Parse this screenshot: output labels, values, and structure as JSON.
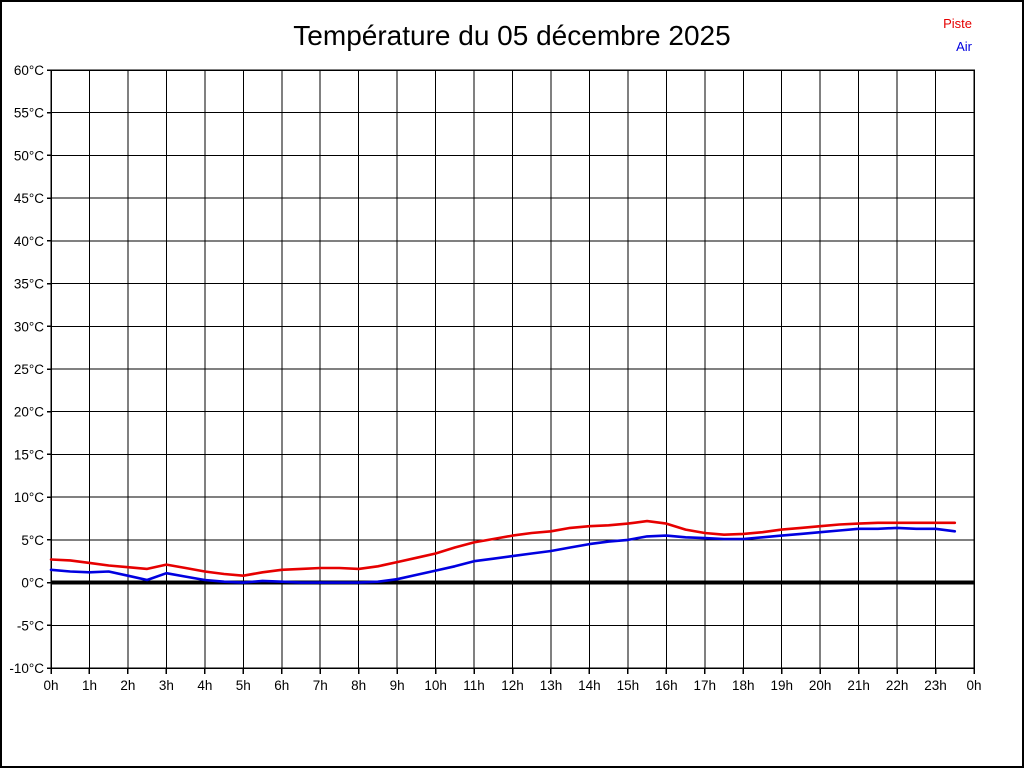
{
  "window": {
    "background": "#ffffff",
    "frame_border_color": "#000000"
  },
  "header": {
    "title": "Température du 05 décembre 2025"
  },
  "legend": {
    "position": "top-right",
    "items": [
      {
        "label": "Piste",
        "color": "#e60000"
      },
      {
        "label": "Air",
        "color": "#0000e0"
      }
    ]
  },
  "chart_data": {
    "type": "line",
    "title": "Température du 05 décembre 2025",
    "xlabel": "",
    "ylabel": "",
    "x_unit": "hour",
    "xlim": [
      0,
      24
    ],
    "ylim": [
      -10,
      60
    ],
    "x_tick_step_hours": 1,
    "y_tick_step_degrees": 5,
    "grid": true,
    "grid_color": "#000000",
    "zero_line_emphasized": true,
    "zero_line_color": "#000000",
    "legend_position": "top-right",
    "x_tick_labels": [
      "0h",
      "1h",
      "2h",
      "3h",
      "4h",
      "5h",
      "6h",
      "7h",
      "8h",
      "9h",
      "10h",
      "11h",
      "12h",
      "13h",
      "14h",
      "15h",
      "16h",
      "17h",
      "18h",
      "19h",
      "20h",
      "21h",
      "22h",
      "23h",
      "0h"
    ],
    "y_tick_labels": [
      "60°C",
      "55°C",
      "50°C",
      "45°C",
      "40°C",
      "35°C",
      "30°C",
      "25°C",
      "20°C",
      "15°C",
      "10°C",
      "5°C",
      "0°C",
      "-5°C",
      "-10°C"
    ],
    "x_start": 0,
    "x_step": 0.5,
    "series": [
      {
        "name": "Piste",
        "color": "#e60000",
        "values": [
          2.7,
          2.6,
          2.3,
          2.0,
          1.8,
          1.6,
          2.1,
          1.7,
          1.3,
          1.0,
          0.8,
          1.2,
          1.5,
          1.6,
          1.7,
          1.7,
          1.6,
          1.9,
          2.4,
          2.9,
          3.4,
          4.1,
          4.7,
          5.1,
          5.5,
          5.8,
          6.0,
          6.4,
          6.6,
          6.7,
          6.9,
          7.2,
          6.9,
          6.2,
          5.8,
          5.6,
          5.7,
          5.9,
          6.2,
          6.4,
          6.6,
          6.8,
          6.9,
          7.0,
          7.0,
          7.0,
          7.0,
          7.0
        ]
      },
      {
        "name": "Air",
        "color": "#0000e0",
        "values": [
          1.5,
          1.3,
          1.2,
          1.3,
          0.8,
          0.3,
          1.1,
          0.7,
          0.3,
          0.1,
          0.0,
          0.2,
          0.1,
          0.0,
          0.0,
          0.0,
          0.0,
          0.1,
          0.4,
          0.9,
          1.4,
          1.9,
          2.5,
          2.8,
          3.1,
          3.4,
          3.7,
          4.1,
          4.5,
          4.8,
          5.0,
          5.4,
          5.5,
          5.3,
          5.2,
          5.1,
          5.1,
          5.3,
          5.5,
          5.7,
          5.9,
          6.1,
          6.3,
          6.3,
          6.4,
          6.3,
          6.3,
          6.0
        ]
      }
    ]
  }
}
